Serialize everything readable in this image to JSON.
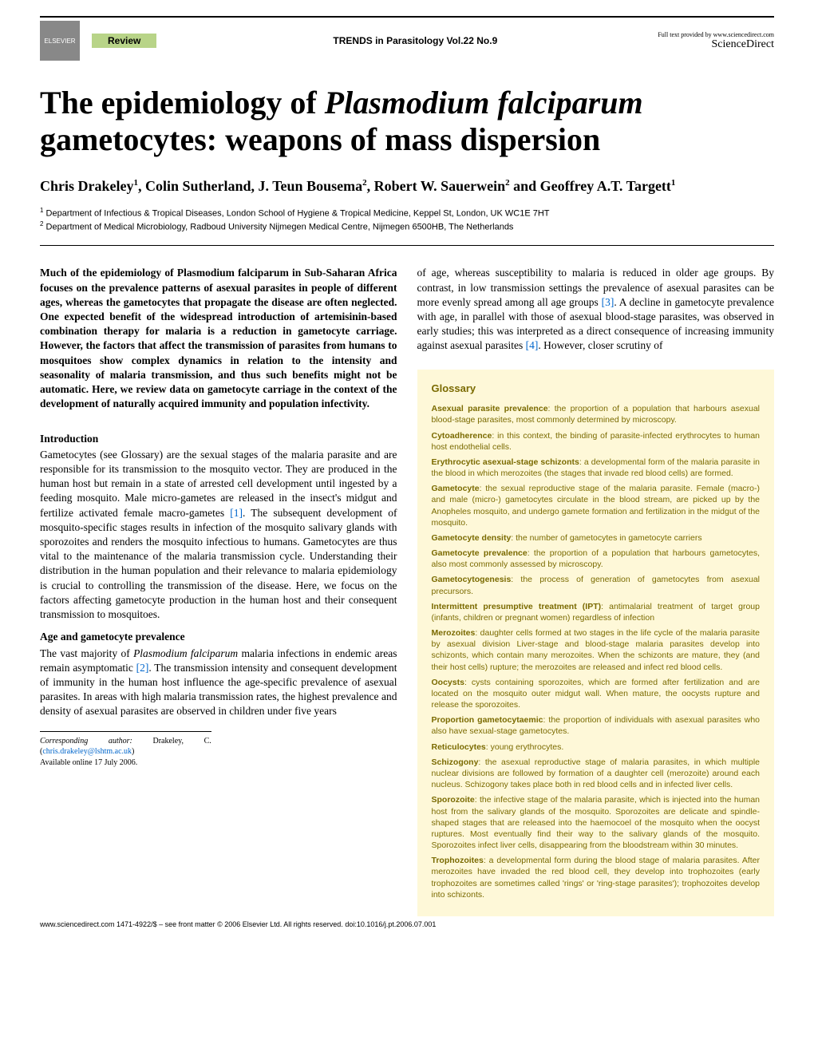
{
  "header": {
    "review_label": "Review",
    "journal": "TRENDS in Parasitology   Vol.22 No.9",
    "sd_small": "Full text provided by www.sciencedirect.com",
    "sciencedirect": "ScienceDirect"
  },
  "title_parts": {
    "p1": "The epidemiology of ",
    "p2": "Plasmodium falciparum",
    "p3": " gametocytes: weapons of mass dispersion"
  },
  "authors_parts": {
    "a1": "Chris Drakeley",
    "s1": "1",
    "a2": ", Colin Sutherland, J. Teun Bousema",
    "s2": "2",
    "a3": ", Robert W. Sauerwein",
    "s3": "2",
    "a4": " and Geoffrey A.T. Targett",
    "s4": "1"
  },
  "affiliations": {
    "l1": " Department of Infectious & Tropical Diseases, London School of Hygiene & Tropical Medicine, Keppel St, London, UK WC1E 7HT",
    "l2": " Department of Medical Microbiology, Radboud University Nijmegen Medical Centre, Nijmegen 6500HB, The Netherlands"
  },
  "abstract": "Much of the epidemiology of Plasmodium falciparum in Sub-Saharan Africa focuses on the prevalence patterns of asexual parasites in people of different ages, whereas the gametocytes that propagate the disease are often neglected. One expected benefit of the widespread introduction of artemisinin-based combination therapy for malaria is a reduction in gametocyte carriage. However, the factors that affect the transmission of parasites from humans to mosquitoes show complex dynamics in relation to the intensity and seasonality of malaria transmission, and thus such benefits might not be automatic. Here, we review data on gametocyte carriage in the context of the development of naturally acquired immunity and population infectivity.",
  "sections": {
    "intro_heading": "Introduction",
    "intro_p1a": "Gametocytes (see Glossary) are the sexual stages of the malaria parasite and are responsible for its transmission to the mosquito vector. They are produced in the human host but remain in a state of arrested cell development until ingested by a feeding mosquito. Male micro-gametes are released in the insect's midgut and fertilize activated female macro-gametes ",
    "intro_ref1": "[1]",
    "intro_p1b": ". The subsequent development of mosquito-specific stages results in infection of the mosquito salivary glands with sporozoites and renders the mosquito infectious to humans. Gametocytes are thus vital to the maintenance of the malaria transmission cycle. Understanding their distribution in the human population and their relevance to malaria epidemiology is crucial to controlling the transmission of the disease. Here, we focus on the factors affecting gametocyte production in the human host and their consequent transmission to mosquitoes.",
    "age_heading": "Age and gametocyte prevalence",
    "age_p1a": "The vast majority of ",
    "age_p1_italic": "Plasmodium falciparum",
    "age_p1b": " malaria infections in endemic areas remain asymptomatic ",
    "age_ref2": "[2]",
    "age_p1c": ". The transmission intensity and consequent development of immunity in the human host influence the age-specific prevalence of asexual parasites. In areas with high malaria transmission rates, the highest prevalence and density of asexual parasites are observed in children under five years",
    "col2_p1a": "of age, whereas susceptibility to malaria is reduced in older age groups. By contrast, in low transmission settings the prevalence of asexual parasites can be more evenly spread among all age groups ",
    "col2_ref3": "[3]",
    "col2_p1b": ". A decline in gametocyte prevalence with age, in parallel with those of asexual blood-stage parasites, was observed in early studies; this was interpreted as a direct consequence of increasing immunity against asexual parasites ",
    "col2_ref4": "[4]",
    "col2_p1c": ". However, closer scrutiny of"
  },
  "glossary": {
    "title": "Glossary",
    "terms": [
      {
        "t": "Asexual parasite prevalence",
        "d": ": the proportion of a population that harbours asexual blood-stage parasites, most commonly determined by microscopy."
      },
      {
        "t": "Cytoadherence",
        "d": ": in this context, the binding of parasite-infected erythrocytes to human host endothelial cells."
      },
      {
        "t": "Erythrocytic asexual-stage schizonts",
        "d": ": a developmental form of the malaria parasite in the blood in which merozoites (the stages that invade red blood cells) are formed."
      },
      {
        "t": "Gametocyte",
        "d": ": the sexual reproductive stage of the malaria parasite. Female (macro-) and male (micro-) gametocytes circulate in the blood stream, are picked up by the Anopheles mosquito, and undergo gamete formation and fertilization in the midgut of the mosquito."
      },
      {
        "t": "Gametocyte density",
        "d": ": the number of gametocytes in gametocyte carriers"
      },
      {
        "t": "Gametocyte prevalence",
        "d": ": the proportion of a population that harbours gametocytes, also most commonly assessed by microscopy."
      },
      {
        "t": "Gametocytogenesis",
        "d": ": the process of generation of gametocytes from asexual precursors."
      },
      {
        "t": "Intermittent presumptive treatment (IPT)",
        "d": ": antimalarial treatment of target group (infants, children or pregnant women) regardless of infection"
      },
      {
        "t": "Merozoites",
        "d": ": daughter cells formed at two stages in the life cycle of the malaria parasite by asexual division Liver-stage and blood-stage malaria parasites develop into schizonts, which contain many merozoites. When the schizonts are mature, they (and their host cells) rupture; the merozoites are released and infect red blood cells."
      },
      {
        "t": "Oocysts",
        "d": ": cysts containing sporozoites, which are formed after fertilization and are located on the mosquito outer midgut wall. When mature, the oocysts rupture and release the sporozoites."
      },
      {
        "t": "Proportion gametocytaemic",
        "d": ": the proportion of individuals with asexual parasites who also have sexual-stage gametocytes."
      },
      {
        "t": "Reticulocytes",
        "d": ": young erythrocytes."
      },
      {
        "t": "Schizogony",
        "d": ": the asexual reproductive stage of malaria parasites, in which multiple nuclear divisions are followed by formation of a daughter cell (merozoite) around each nucleus. Schizogony takes place both in red blood cells and in infected liver cells."
      },
      {
        "t": "Sporozoite",
        "d": ": the infective stage of the malaria parasite, which is injected into the human host from the salivary glands of the mosquito. Sporozoites are delicate and spindle-shaped stages that are released into the haemocoel of the mosquito when the oocyst ruptures. Most eventually find their way to the salivary glands of the mosquito. Sporozoites infect liver cells, disappearing from the bloodstream within 30 minutes."
      },
      {
        "t": "Trophozoites",
        "d": ": a developmental form during the blood stage of malaria parasites. After merozoites have invaded the red blood cell, they develop into trophozoites (early trophozoites are sometimes called 'rings' or 'ring-stage parasites'); trophozoites develop into schizonts."
      }
    ]
  },
  "corresponding": {
    "label": "Corresponding author:",
    "name": " Drakeley, C. (",
    "email": "chris.drakeley@lshtm.ac.uk",
    "close": ")",
    "avail": "Available online 17 July 2006."
  },
  "footer": {
    "line": "www.sciencedirect.com   1471-4922/$ – see front matter © 2006 Elsevier Ltd. All rights reserved. doi:10.1016/j.pt.2006.07.001"
  }
}
